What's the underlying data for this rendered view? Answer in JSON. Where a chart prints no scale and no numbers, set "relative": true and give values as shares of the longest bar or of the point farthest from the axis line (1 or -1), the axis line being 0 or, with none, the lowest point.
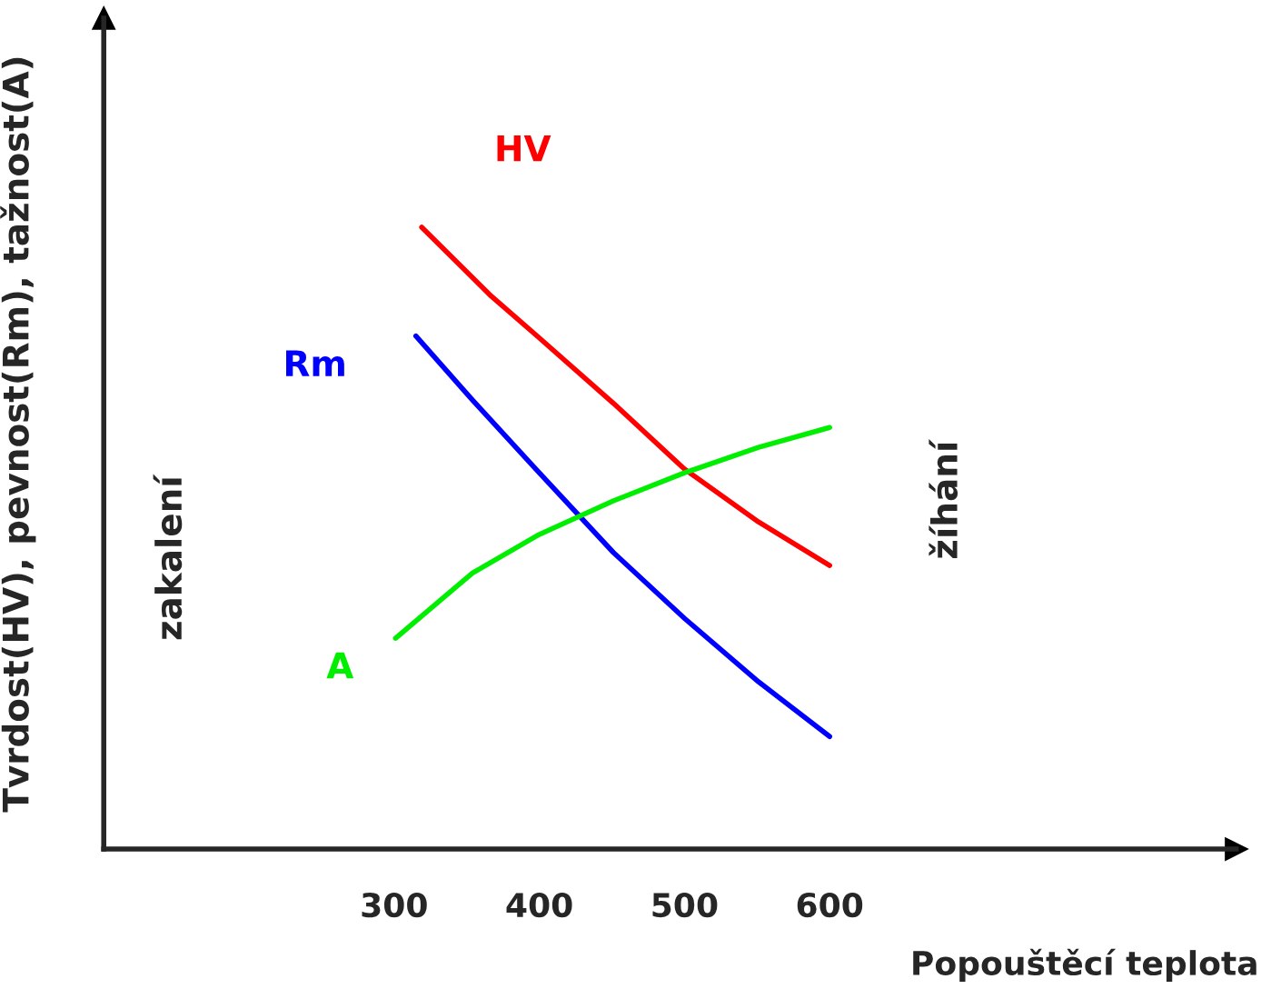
{
  "chart_data": {
    "type": "line",
    "relative": true,
    "xlabel": "Popouštěcí teplota",
    "ylabel": "Tvrdost(HV), pevnost(Rm), tažnost(A)",
    "xlim": [
      100,
      880
    ],
    "xticks": [
      300,
      400,
      500,
      600
    ],
    "grid": false,
    "legend": false,
    "marker": "none",
    "line_style": "solid",
    "series": [
      {
        "name": "HV",
        "color": "#ff0000",
        "x": [
          319,
          367,
          400,
          451,
          500,
          551,
          600
        ],
        "values": [
          1.0,
          0.889,
          0.822,
          0.717,
          0.611,
          0.526,
          0.456
        ]
      },
      {
        "name": "Rm",
        "color": "#0000ff",
        "x": [
          315,
          354,
          400,
          451,
          500,
          551,
          600
        ],
        "values": [
          0.825,
          0.722,
          0.605,
          0.477,
          0.371,
          0.269,
          0.181
        ]
      },
      {
        "name": "A",
        "color": "#00ee00",
        "x": [
          301,
          354,
          400,
          451,
          500,
          551,
          600
        ],
        "values": [
          0.339,
          0.444,
          0.506,
          0.56,
          0.605,
          0.646,
          0.678
        ]
      }
    ],
    "annotations": [
      "zakalení",
      "žíhání"
    ]
  }
}
